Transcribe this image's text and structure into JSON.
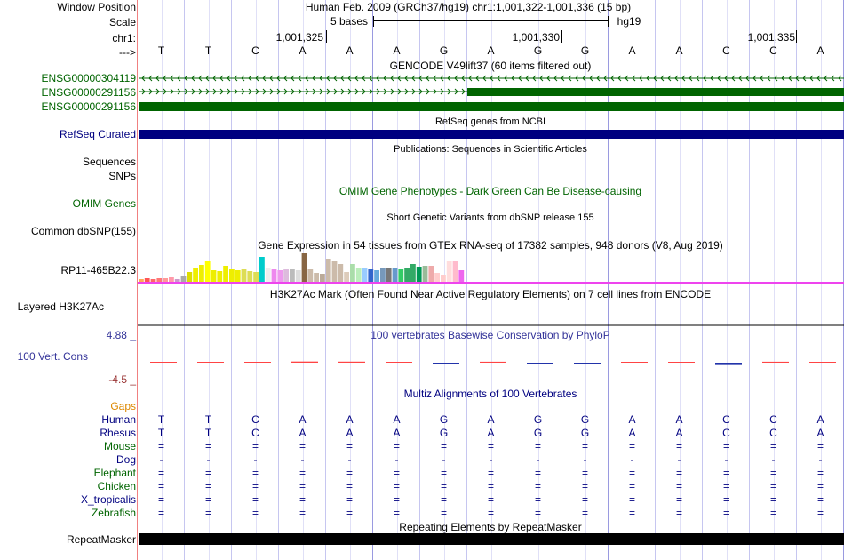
{
  "ruler": {
    "window_position_label": "Window Position",
    "scale_label": "Scale",
    "chr_label": "chr1:",
    "arrow_label": "--->",
    "window_title": "Human Feb. 2009 (GRCh37/hg19)   chr1:1,001,322-1,001,336 (15 bp)",
    "scale_text": "5 bases",
    "assembly": "hg19",
    "ticks": [
      "1,001,325",
      "1,001,330",
      "1,001,335"
    ]
  },
  "sequence": [
    "T",
    "T",
    "C",
    "A",
    "A",
    "A",
    "G",
    "A",
    "G",
    "G",
    "A",
    "A",
    "C",
    "C",
    "A"
  ],
  "gencode": {
    "title": "GENCODE V49lift37 (60 items filtered out)",
    "items": [
      "ENSG00000304119",
      "ENSG00000291156",
      "ENSG00000291156"
    ],
    "color": "#006400"
  },
  "refseq": {
    "title": "RefSeq genes from NCBI",
    "label": "RefSeq Curated",
    "color": "#000080"
  },
  "publications": {
    "title": "Publications: Sequences in Scientific Articles",
    "labels": [
      "Sequences",
      "SNPs"
    ]
  },
  "omim": {
    "title": "OMIM Gene Phenotypes - Dark Green Can Be Disease-causing",
    "label": "OMIM Genes",
    "color": "#006400"
  },
  "dbsnp": {
    "title": "Short Genetic Variants from dbSNP release 155",
    "label": "Common dbSNP(155)"
  },
  "gtex": {
    "title": "Gene Expression in 54 tissues from GTEx RNA-seq of 17382 samples, 948 donors (V8, Aug 2019)",
    "label": "RP11-465B22.3",
    "values": [
      3,
      4,
      3,
      4,
      4,
      5,
      3,
      6,
      11,
      15,
      19,
      23,
      13,
      12,
      18,
      14,
      13,
      14,
      12,
      11,
      28,
      15,
      14,
      13,
      14,
      14,
      13,
      32,
      14,
      10,
      9,
      26,
      23,
      20,
      11,
      20,
      16,
      16,
      14,
      13,
      16,
      15,
      16,
      14,
      16,
      20,
      17,
      18,
      18,
      10,
      8,
      23,
      23,
      13
    ],
    "colors": [
      "#FFAA55",
      "#FF5555",
      "#FF6666",
      "#FF7777",
      "#FF9999",
      "#FF99AA",
      "#CC99CC",
      "#AAAAAA",
      "#DDDD00",
      "#EEEE00",
      "#EEEE00",
      "#FFFF00",
      "#EEEE00",
      "#EEEE00",
      "#EEEE00",
      "#EEEE00",
      "#EEEE00",
      "#DDDD55",
      "#DDDD55",
      "#DDDD55",
      "#00CCCC",
      "#EEEEEE",
      "#EE88EE",
      "#EE99EE",
      "#DDBBDD",
      "#BBBBBB",
      "#DDDDDD",
      "#886644",
      "#CCBBAA",
      "#CCBBAA",
      "#BBAA99",
      "#CCBBAA",
      "#CCBBAA",
      "#CCBBAA",
      "#DDCCBB",
      "#AADDAA",
      "#BBEEBB",
      "#99CCFF",
      "#3366CC",
      "#66AADD",
      "#7799BB",
      "#777777",
      "#6699CC",
      "#33CC66",
      "#33AA66",
      "#33AA66",
      "#009955",
      "#99BB99",
      "#EEAAAA",
      "#FFCCCC",
      "#FFCCCC",
      "#FFDDDD",
      "#FFBBCC",
      "#EE66EE"
    ],
    "baseline_color": "#ee44ee"
  },
  "h3k27ac": {
    "title": "H3K27Ac Mark (Often Found Near Active Regulatory Elements) on 7 cell lines from ENCODE",
    "label": "Layered H3K27Ac"
  },
  "phylop": {
    "title": "100 vertebrates Basewise Conservation by PhyloP",
    "label": "100 Vert. Cons",
    "max_label": "4.88 _",
    "min_label": "-4.5 _",
    "values": [
      0.2,
      0.3,
      0.25,
      0.6,
      0.55,
      0.45,
      -0.8,
      0.5,
      -0.9,
      -0.85,
      0.35,
      0.4,
      -1.2,
      0.5,
      0.4
    ],
    "pos_color": "#ff4444",
    "neg_color": "#2233aa",
    "title_color": "#333399",
    "min_color": "#993333"
  },
  "multiz": {
    "title": "Multiz Alignments of 100 Vertebrates",
    "gaps_label": "Gaps",
    "species": [
      {
        "name": "Human",
        "row": [
          "T",
          "T",
          "C",
          "A",
          "A",
          "A",
          "G",
          "A",
          "G",
          "G",
          "A",
          "A",
          "C",
          "C",
          "A"
        ]
      },
      {
        "name": "Rhesus",
        "row": [
          "T",
          "T",
          "C",
          "A",
          "A",
          "A",
          "G",
          "A",
          "G",
          "G",
          "A",
          "A",
          "C",
          "C",
          "A"
        ]
      },
      {
        "name": "Mouse",
        "row": [
          "=",
          "=",
          "=",
          "=",
          "=",
          "=",
          "=",
          "=",
          "=",
          "=",
          "=",
          "=",
          "=",
          "=",
          "="
        ]
      },
      {
        "name": "Dog",
        "row": [
          "-",
          "-",
          "-",
          "-",
          "-",
          "-",
          "-",
          "-",
          "-",
          "-",
          "-",
          "-",
          "-",
          "-",
          "-"
        ]
      },
      {
        "name": "Elephant",
        "row": [
          "=",
          "=",
          "=",
          "=",
          "=",
          "=",
          "=",
          "=",
          "=",
          "=",
          "=",
          "=",
          "=",
          "=",
          "="
        ]
      },
      {
        "name": "Chicken",
        "row": [
          "=",
          "=",
          "=",
          "=",
          "=",
          "=",
          "=",
          "=",
          "=",
          "=",
          "=",
          "=",
          "=",
          "=",
          "="
        ]
      },
      {
        "name": "X_tropicalis",
        "row": [
          "=",
          "=",
          "=",
          "=",
          "=",
          "=",
          "=",
          "=",
          "=",
          "=",
          "=",
          "=",
          "=",
          "=",
          "="
        ]
      },
      {
        "name": "Zebrafish",
        "row": [
          "=",
          "=",
          "=",
          "=",
          "=",
          "=",
          "=",
          "=",
          "=",
          "=",
          "=",
          "=",
          "=",
          "=",
          "="
        ]
      }
    ]
  },
  "repeatmasker": {
    "title": "Repeating Elements by RepeatMasker",
    "label": "RepeatMasker"
  }
}
